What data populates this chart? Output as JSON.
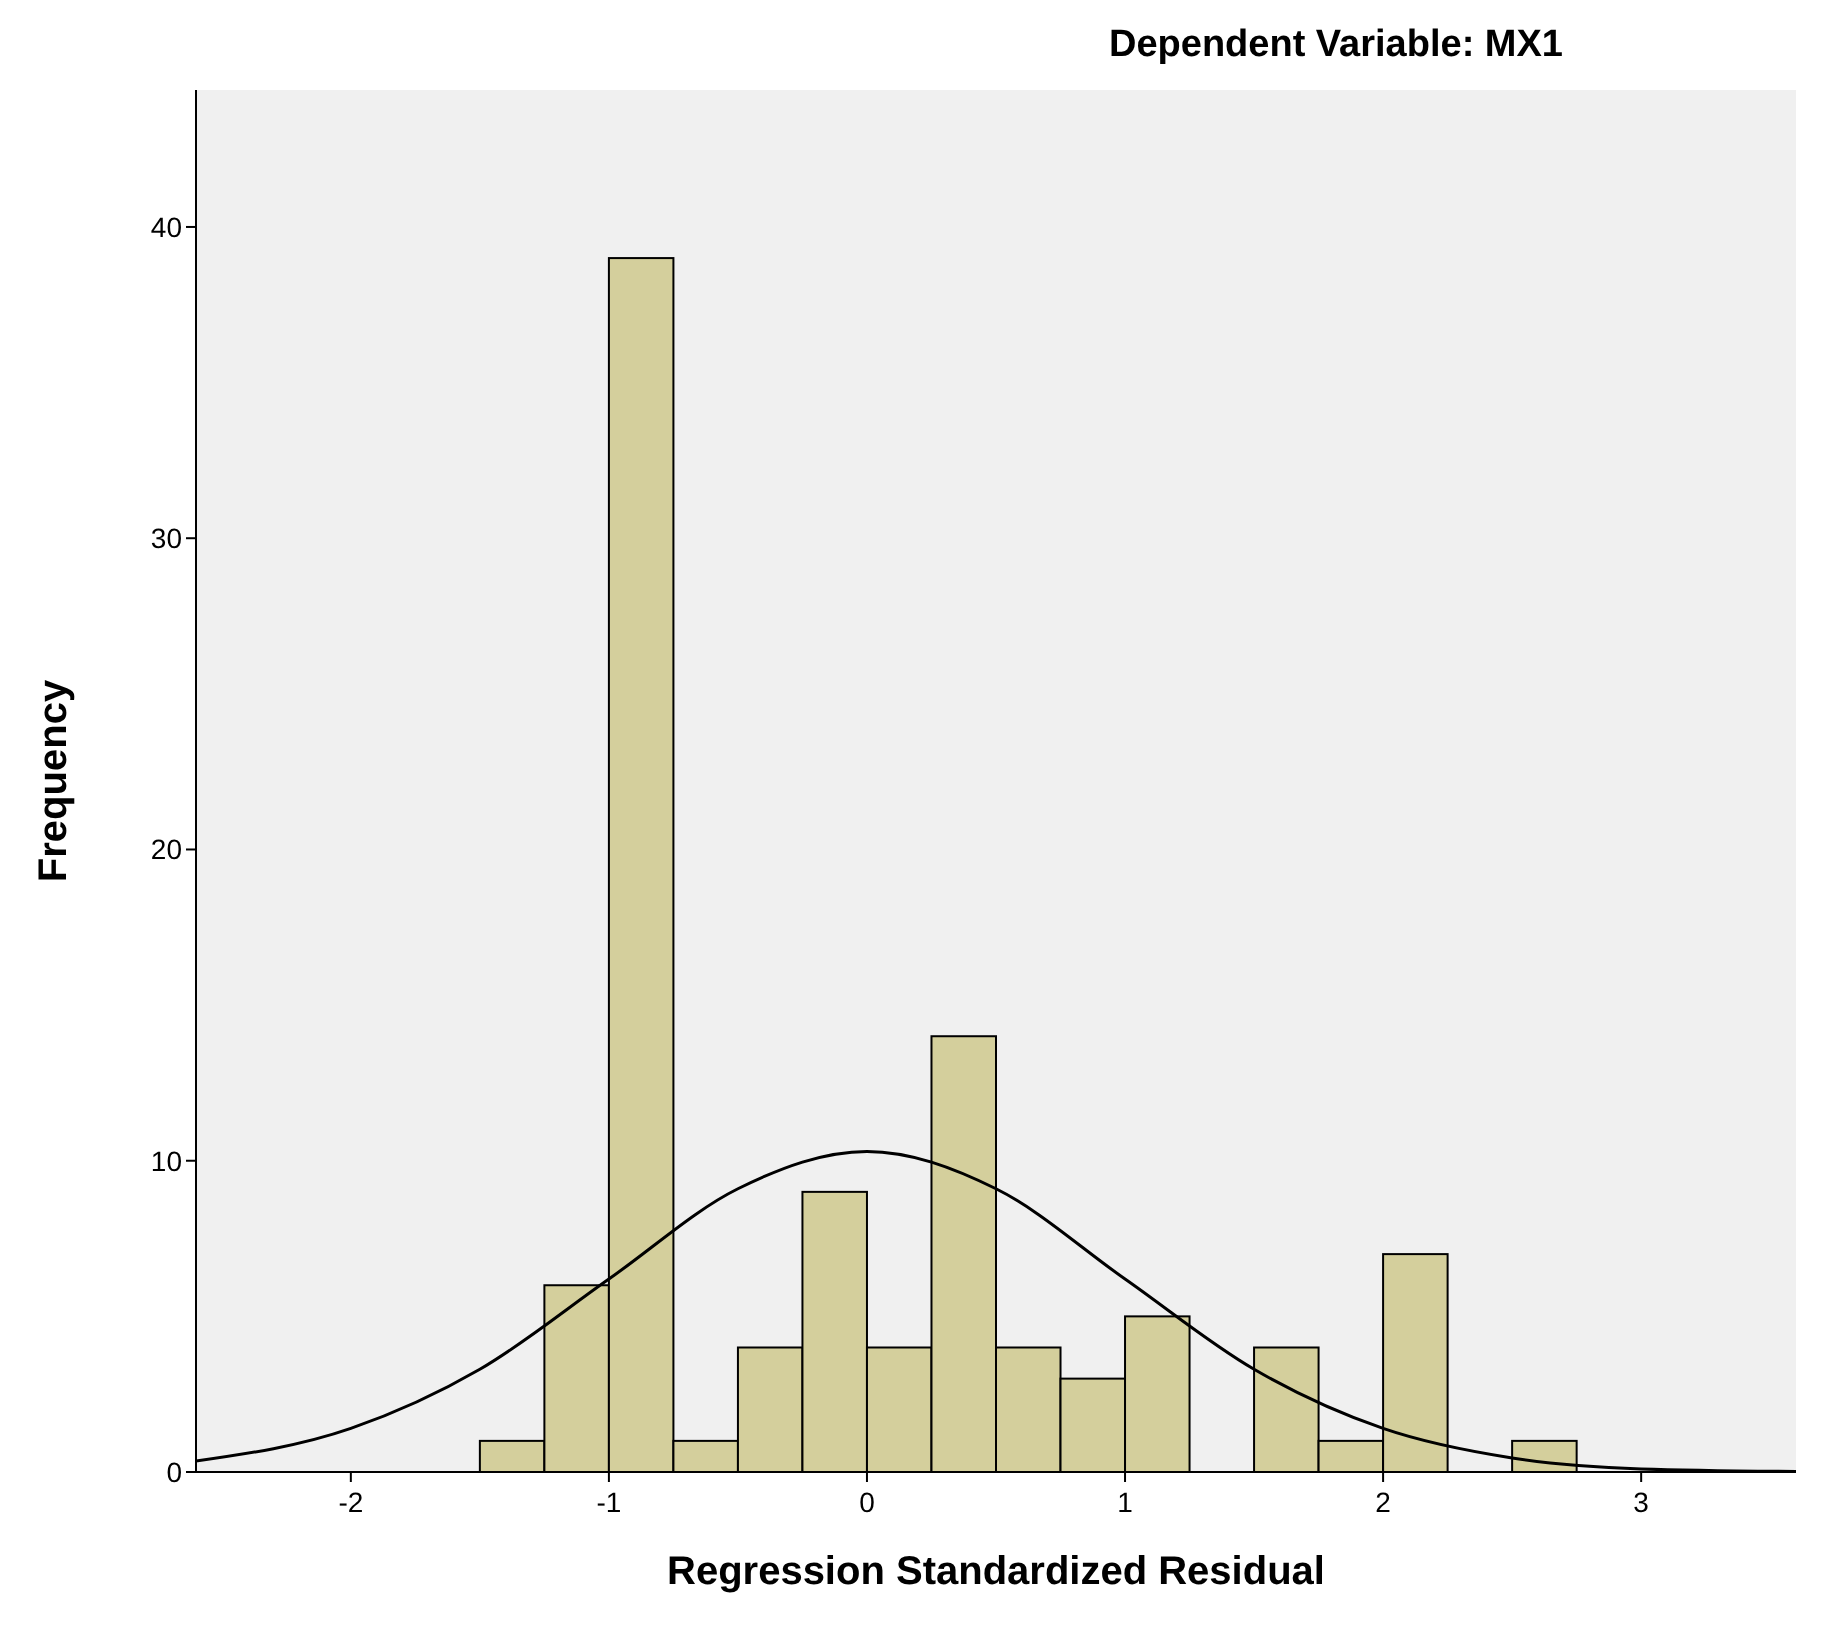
{
  "chart_data": {
    "type": "histogram",
    "title": "Dependent Variable: MX1",
    "xlabel": "Regression Standardized Residual",
    "ylabel": "Frequency",
    "bins": [
      -1.5,
      -1.25,
      -1,
      -0.75,
      -0.5,
      -0.25,
      0,
      0.25,
      0.5,
      0.75,
      1,
      1.25,
      1.5,
      1.75,
      2,
      2.25,
      2.5,
      2.75
    ],
    "values": [
      1,
      6,
      39,
      1,
      4,
      9,
      4,
      14,
      4,
      3,
      5,
      0,
      4,
      1,
      7,
      0,
      1
    ],
    "color": "#d4cf9c",
    "series": [
      {
        "type": "line",
        "color": "#000000",
        "x": [
          -2.6,
          -2,
          -1.5,
          -1,
          -0.5,
          0,
          0.5,
          1,
          1.5,
          2,
          2.5,
          3,
          3.6
        ],
        "values": [
          0.35,
          1.4,
          3.3,
          6.2,
          9.1,
          10.3,
          9.1,
          6.2,
          3.3,
          1.4,
          0.45,
          0.1,
          0.02
        ]
      }
    ],
    "xlim": [
      -2.6,
      3.6
    ],
    "ylim": [
      0,
      44.4
    ],
    "xticks": [
      -2,
      -1,
      0,
      1,
      2,
      3
    ],
    "yticks": [
      0,
      10,
      20,
      30,
      40
    ],
    "grid": false
  }
}
